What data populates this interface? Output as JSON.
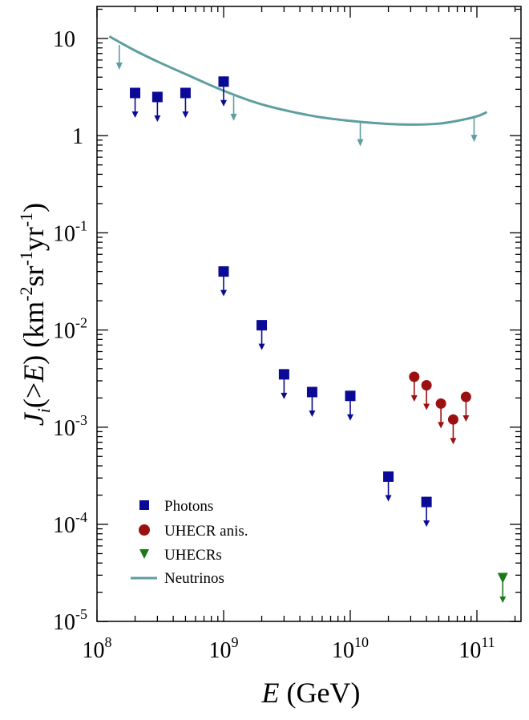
{
  "chart_data": {
    "type": "scatter",
    "x_scale": "log",
    "y_scale": "log",
    "xlim": [
      100000000.0,
      200000000000.0
    ],
    "ylim": [
      1e-05,
      20
    ],
    "xlabel": {
      "italic": "E",
      "rest": " (GeV)"
    },
    "ylabel": {
      "italic_main": "J",
      "sub": "i",
      "paren_open": "(>",
      "italic_E": "E",
      "paren_close": ") (km",
      "sup1": "-2",
      "sr": "sr",
      "sup2": "-1",
      "yr": "yr",
      "sup3": "-1",
      "close": ")"
    },
    "x_ticks": [
      {
        "value": 100000000.0,
        "base": "10",
        "exp": "8"
      },
      {
        "value": 1000000000.0,
        "base": "10",
        "exp": "9"
      },
      {
        "value": 10000000000.0,
        "base": "10",
        "exp": "10"
      },
      {
        "value": 100000000000.0,
        "base": "10",
        "exp": "11"
      }
    ],
    "y_ticks": [
      {
        "value": 10,
        "base": "10",
        "exp": ""
      },
      {
        "value": 1,
        "base": "1",
        "exp": ""
      },
      {
        "value": 0.1,
        "base": "10",
        "exp": "-1"
      },
      {
        "value": 0.01,
        "base": "10",
        "exp": "-2"
      },
      {
        "value": 0.001,
        "base": "10",
        "exp": "-3"
      },
      {
        "value": 0.0001,
        "base": "10",
        "exp": "-4"
      },
      {
        "value": 1e-05,
        "base": "10",
        "exp": "-5"
      }
    ],
    "series": [
      {
        "name": "Photons",
        "marker": "square",
        "color": "#0a0a96",
        "upper_limits": true,
        "points": [
          {
            "x": 200000000.0,
            "y": 2.75
          },
          {
            "x": 300000000.0,
            "y": 2.5
          },
          {
            "x": 500000000.0,
            "y": 2.75
          },
          {
            "x": 1000000000.0,
            "y": 3.6
          },
          {
            "x": 1000000000.0,
            "y": 0.04
          },
          {
            "x": 2000000000.0,
            "y": 0.0112
          },
          {
            "x": 3000000000.0,
            "y": 0.0035
          },
          {
            "x": 5000000000.0,
            "y": 0.0023
          },
          {
            "x": 10000000000.0,
            "y": 0.0021
          },
          {
            "x": 20000000000.0,
            "y": 0.00031
          },
          {
            "x": 40000000000.0,
            "y": 0.00017
          }
        ]
      },
      {
        "name": "UHECR anis.",
        "marker": "circle",
        "color": "#9b1111",
        "upper_limits": true,
        "points": [
          {
            "x": 32000000000.0,
            "y": 0.0033
          },
          {
            "x": 40000000000.0,
            "y": 0.0027
          },
          {
            "x": 52000000000.0,
            "y": 0.00175
          },
          {
            "x": 65000000000.0,
            "y": 0.0012
          },
          {
            "x": 82000000000.0,
            "y": 0.00205
          }
        ]
      },
      {
        "name": "UHECRs",
        "marker": "triangle-down",
        "color": "#1a7a1a",
        "upper_limits": true,
        "points": [
          {
            "x": 160000000000.0,
            "y": 2.8e-05
          }
        ]
      },
      {
        "name": "Neutrinos",
        "marker": "line",
        "color": "#5f9ea0",
        "curve": [
          {
            "x": 125000000.0,
            "y": 10.5
          },
          {
            "x": 200000000.0,
            "y": 7.5
          },
          {
            "x": 300000000.0,
            "y": 5.8
          },
          {
            "x": 500000000.0,
            "y": 4.3
          },
          {
            "x": 1000000000.0,
            "y": 2.9
          },
          {
            "x": 2000000000.0,
            "y": 2.1
          },
          {
            "x": 5000000000.0,
            "y": 1.6
          },
          {
            "x": 10000000000.0,
            "y": 1.42
          },
          {
            "x": 20000000000.0,
            "y": 1.32
          },
          {
            "x": 32000000000.0,
            "y": 1.3
          },
          {
            "x": 50000000000.0,
            "y": 1.33
          },
          {
            "x": 70000000000.0,
            "y": 1.42
          },
          {
            "x": 100000000000.0,
            "y": 1.58
          },
          {
            "x": 120000000000.0,
            "y": 1.75
          }
        ],
        "arrows": [
          {
            "x": 150000000.0,
            "y": 8.6
          },
          {
            "x": 1200000000.0,
            "y": 2.55
          },
          {
            "x": 12000000000.0,
            "y": 1.4
          },
          {
            "x": 95000000000.0,
            "y": 1.55
          }
        ]
      }
    ],
    "legend": {
      "position": "bottom-left",
      "entries": [
        "Photons",
        "UHECR anis.",
        "UHECRs",
        "Neutrinos"
      ]
    }
  }
}
